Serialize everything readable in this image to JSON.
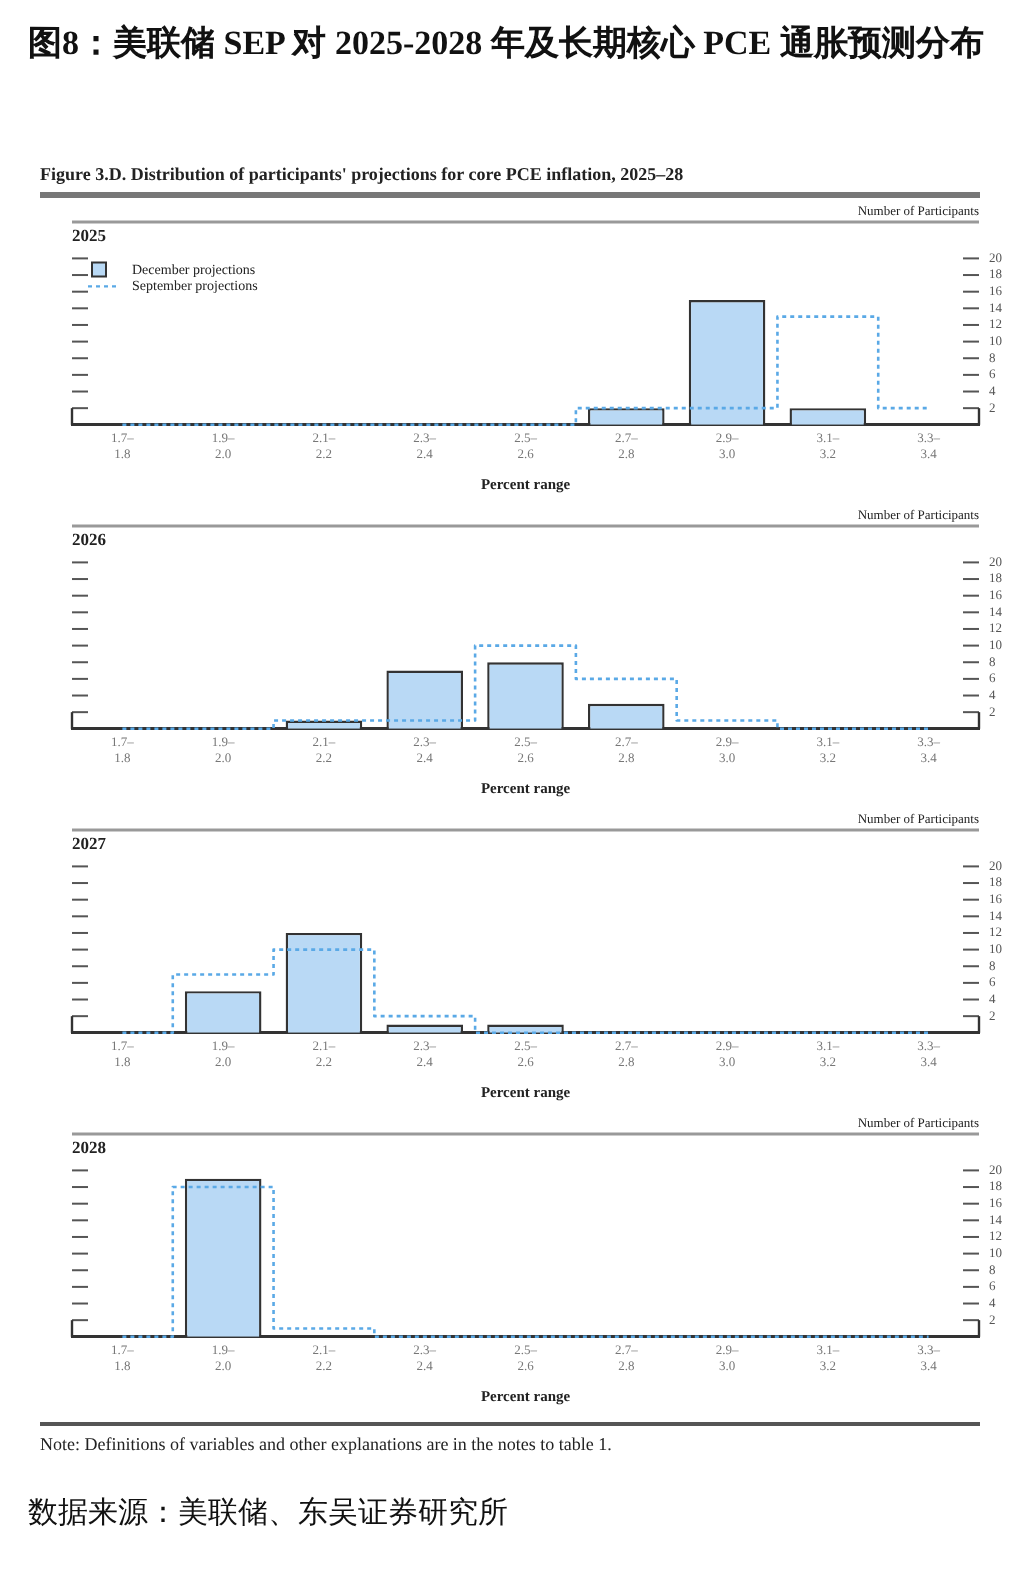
{
  "chart_data": [
    {
      "type": "other",
      "title": "图8：美联储 SEP 对 2025-2028 年及长期核心 PCE 通胀预测分布",
      "subtitle": "Figure 3.D. Distribution of participants' projections for core PCE inflation, 2025–28"
    },
    {
      "type": "bar",
      "title": "2025",
      "xlabel": "Percent range",
      "ylabel": "Number of Participants",
      "legend": "top left",
      "categories": [
        "1.7–1.8",
        "1.9–2.0",
        "2.1–2.2",
        "2.3–2.4",
        "2.5–2.6",
        "2.7–2.8",
        "2.9–3.0",
        "3.1–3.2",
        "3.3–3.4"
      ],
      "ylim": [
        0,
        20
      ],
      "yticks": [
        2,
        4,
        6,
        8,
        10,
        12,
        14,
        16,
        18,
        20
      ],
      "series": [
        {
          "name": "December projections",
          "color": "#b9d9f5",
          "values": [
            0,
            0,
            0,
            0,
            0,
            2,
            15,
            2,
            0
          ]
        },
        {
          "name": "September projections",
          "type": "step",
          "line_style": "dotted",
          "color": "#5aa9e6",
          "values": [
            0,
            0,
            0,
            0,
            0,
            2,
            2,
            13,
            2
          ]
        }
      ]
    },
    {
      "type": "bar",
      "title": "2026",
      "xlabel": "Percent range",
      "ylabel": "Number of Participants",
      "categories": [
        "1.7–1.8",
        "1.9–2.0",
        "2.1–2.2",
        "2.3–2.4",
        "2.5–2.6",
        "2.7–2.8",
        "2.9–3.0",
        "3.1–3.2",
        "3.3–3.4"
      ],
      "ylim": [
        0,
        20
      ],
      "yticks": [
        2,
        4,
        6,
        8,
        10,
        12,
        14,
        16,
        18,
        20
      ],
      "series": [
        {
          "color": "#b9d9f5",
          "values": [
            0,
            0,
            1,
            7,
            8,
            3,
            0,
            0,
            0
          ]
        },
        {
          "type": "step",
          "line_style": "dotted",
          "color": "#5aa9e6",
          "values": [
            0,
            0,
            1,
            1,
            10,
            6,
            1,
            0,
            0
          ]
        }
      ]
    },
    {
      "type": "bar",
      "title": "2027",
      "xlabel": "Percent range",
      "ylabel": "Number of Participants",
      "categories": [
        "1.7–1.8",
        "1.9–2.0",
        "2.1–2.2",
        "2.3–2.4",
        "2.5–2.6",
        "2.7–2.8",
        "2.9–3.0",
        "3.1–3.2",
        "3.3–3.4"
      ],
      "ylim": [
        0,
        20
      ],
      "yticks": [
        2,
        4,
        6,
        8,
        10,
        12,
        14,
        16,
        18,
        20
      ],
      "series": [
        {
          "color": "#b9d9f5",
          "values": [
            0,
            5,
            12,
            1,
            1,
            0,
            0,
            0,
            0
          ]
        },
        {
          "type": "step",
          "line_style": "dotted",
          "color": "#5aa9e6",
          "values": [
            0,
            7,
            10,
            2,
            0,
            0,
            0,
            0,
            0
          ]
        }
      ]
    },
    {
      "type": "bar",
      "title": "2028",
      "xlabel": "Percent range",
      "ylabel": "Number of Participants",
      "categories": [
        "1.7–1.8",
        "1.9–2.0",
        "2.1–2.2",
        "2.3–2.4",
        "2.5–2.6",
        "2.7–2.8",
        "2.9–3.0",
        "3.1–3.2",
        "3.3–3.4"
      ],
      "ylim": [
        0,
        20
      ],
      "yticks": [
        2,
        4,
        6,
        8,
        10,
        12,
        14,
        16,
        18,
        20
      ],
      "series": [
        {
          "color": "#b9d9f5",
          "values": [
            0,
            19,
            0,
            0,
            0,
            0,
            0,
            0,
            0
          ]
        },
        {
          "type": "step",
          "line_style": "dotted",
          "color": "#5aa9e6",
          "values": [
            0,
            18,
            1,
            0,
            0,
            0,
            0,
            0,
            0
          ]
        }
      ],
      "annotations": [
        "Note: Definitions of variables and other explanations are in the notes to table 1.",
        "数据来源：美联储、东吴证券研究所"
      ]
    }
  ]
}
